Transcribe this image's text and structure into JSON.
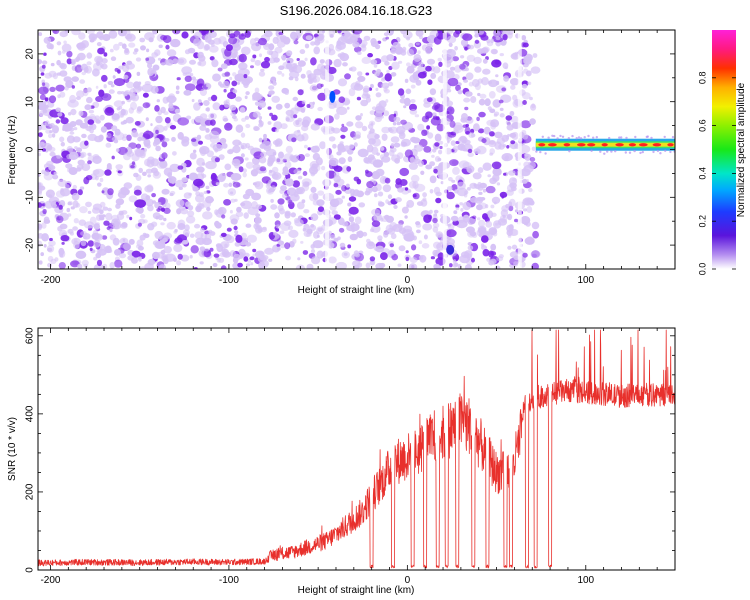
{
  "title": "S196.2026.084.16.18.G23",
  "colors": {
    "snr_line": "#e8302c",
    "spectro_dot_dark": "#7a22e8",
    "spectro_dot_light": "#d6c2f6"
  },
  "chart_data": [
    {
      "type": "heatmap",
      "title": "S196.2026.084.16.18.G23",
      "xlabel": "Height of straight line (km)",
      "ylabel": "Frequency (Hz)",
      "xlim": [
        -207,
        150
      ],
      "ylim": [
        -25,
        25
      ],
      "xticks": [
        -200,
        -100,
        0,
        100
      ],
      "xtick_labels": [
        "-200",
        "-100",
        "0",
        "100"
      ],
      "yticks": [
        -20,
        -10,
        0,
        10,
        20
      ],
      "ytick_labels": [
        "-20",
        "-10",
        "0",
        "10",
        "20"
      ],
      "noise_region_x": [
        -207,
        72
      ],
      "signal_band": {
        "x_start": 72,
        "x_end": 150,
        "frequency_hz": 1,
        "amplitude": 0.9
      },
      "colorbar": {
        "label": "Normalized spectral amplitude",
        "range": [
          0,
          1
        ],
        "ticks": [
          0.0,
          0.2,
          0.4,
          0.6,
          0.8
        ],
        "tick_labels": [
          "0.0",
          "0.2",
          "0.4",
          "0.6",
          "0.8"
        ]
      }
    },
    {
      "type": "line",
      "xlabel": "Height of straight line (km)",
      "ylabel": "SNR (10 * v/v)",
      "xlim": [
        -207,
        150
      ],
      "ylim": [
        0,
        620
      ],
      "xticks": [
        -200,
        -100,
        0,
        100
      ],
      "xtick_labels": [
        "-200",
        "-100",
        "0",
        "100"
      ],
      "yticks": [
        0,
        200,
        400,
        600
      ],
      "ytick_labels": [
        "0",
        "200",
        "400",
        "600"
      ],
      "series": [
        {
          "values_xy": [
            [
              -207,
              18
            ],
            [
              -180,
              20
            ],
            [
              -150,
              19
            ],
            [
              -120,
              21
            ],
            [
              -100,
              20
            ],
            [
              -80,
              22
            ],
            [
              -75,
              40
            ],
            [
              -65,
              45
            ],
            [
              -55,
              60
            ],
            [
              -45,
              75
            ],
            [
              -35,
              110
            ],
            [
              -25,
              150
            ],
            [
              -20,
              190
            ],
            [
              -15,
              220
            ],
            [
              -10,
              260
            ],
            [
              -5,
              280
            ],
            [
              0,
              290
            ],
            [
              5,
              300
            ],
            [
              10,
              320
            ],
            [
              15,
              340
            ],
            [
              20,
              350
            ],
            [
              25,
              365
            ],
            [
              30,
              380
            ],
            [
              35,
              370
            ],
            [
              40,
              330
            ],
            [
              45,
              290
            ],
            [
              50,
              250
            ],
            [
              55,
              250
            ],
            [
              60,
              280
            ],
            [
              63,
              330
            ],
            [
              65,
              420
            ],
            [
              70,
              440
            ],
            [
              80,
              450
            ],
            [
              90,
              460
            ],
            [
              100,
              455
            ],
            [
              110,
              450
            ],
            [
              120,
              445
            ],
            [
              130,
              450
            ],
            [
              140,
              448
            ],
            [
              150,
              450
            ]
          ],
          "dropouts_x": [
            -20,
            -8,
            3,
            10,
            17,
            22,
            28,
            37,
            45,
            55,
            58,
            67,
            72,
            80
          ]
        }
      ]
    }
  ]
}
